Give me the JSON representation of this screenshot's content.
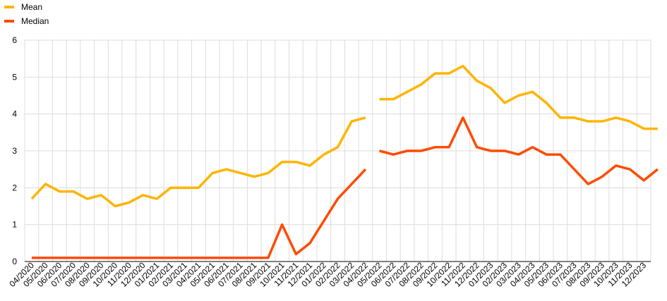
{
  "chart_data": {
    "type": "line",
    "ylim": [
      0,
      6
    ],
    "yticks": [
      "0",
      "1",
      "2",
      "3",
      "4",
      "5",
      "6"
    ],
    "categories": [
      "04/2020",
      "05/2020",
      "06/2020",
      "07/2020",
      "08/2020",
      "09/2020",
      "10/2020",
      "11/2020",
      "12/2020",
      "01/2021",
      "02/2021",
      "03/2021",
      "04/2021",
      "05/2021",
      "06/2021",
      "07/2021",
      "08/2021",
      "09/2021",
      "10/2021",
      "11/2021",
      "12/2021",
      "01/2022",
      "02/2022",
      "03/2022",
      "04/2022",
      "05/2022",
      "06/2022",
      "07/2022",
      "08/2022",
      "09/2022",
      "10/2022",
      "11/2022",
      "12/2022",
      "01/2023",
      "02/2023",
      "03/2023",
      "04/2023",
      "05/2023",
      "06/2023",
      "07/2023",
      "08/2023",
      "09/2023",
      "10/2023",
      "11/2023",
      "12/2023"
    ],
    "series": [
      {
        "name": "Mean",
        "color": "#FFB400",
        "segments": [
          {
            "start": 0,
            "values": [
              1.7,
              2.1,
              1.9,
              1.9,
              1.7,
              1.8,
              1.5,
              1.6,
              1.8,
              1.7,
              2.0,
              2.0,
              2.0,
              2.4,
              2.5,
              2.4,
              2.3,
              2.4,
              2.7,
              2.7,
              2.6,
              2.9,
              3.1,
              3.8,
              3.9
            ]
          },
          {
            "start": 25,
            "values": [
              4.4,
              4.4,
              4.6,
              4.8,
              5.1,
              5.1,
              5.3,
              4.9,
              4.7,
              4.3,
              4.5,
              4.6,
              4.3,
              3.9,
              3.9,
              3.8,
              3.8,
              3.9,
              3.8,
              3.6,
              3.6
            ]
          }
        ]
      },
      {
        "name": "Median",
        "color": "#FF4B00",
        "segments": [
          {
            "start": 0,
            "values": [
              0.1,
              0.1,
              0.1,
              0.1,
              0.1,
              0.1,
              0.1,
              0.1,
              0.1,
              0.1,
              0.1,
              0.1,
              0.1,
              0.1,
              0.1,
              0.1,
              0.1,
              0.1,
              1.0,
              0.2,
              0.5,
              1.1,
              1.7,
              2.1,
              2.5
            ]
          },
          {
            "start": 25,
            "values": [
              3.0,
              2.9,
              3.0,
              3.0,
              3.1,
              3.1,
              3.9,
              3.1,
              3.0,
              3.0,
              2.9,
              3.1,
              2.9,
              2.9,
              2.5,
              2.1,
              2.3,
              2.6,
              2.5,
              2.2,
              2.5
            ]
          }
        ]
      }
    ],
    "grid": true,
    "legend_position": "top-left"
  }
}
